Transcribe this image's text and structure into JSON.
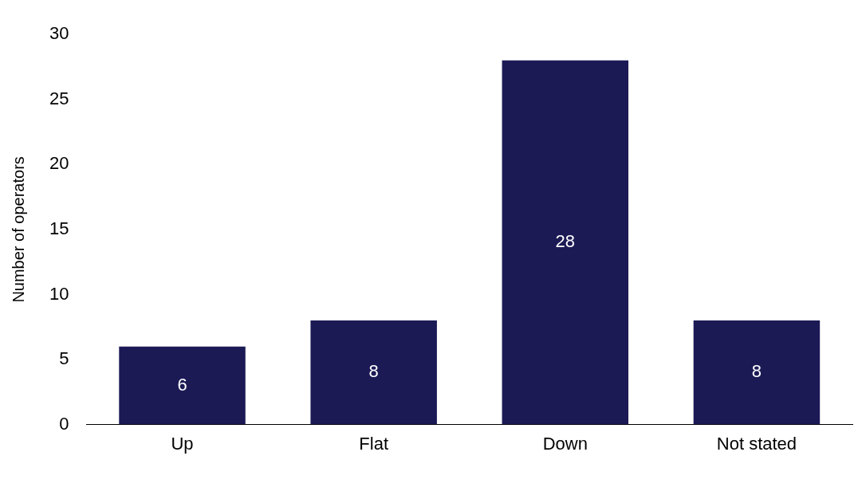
{
  "chart_data": {
    "type": "bar",
    "ylabel": "Number of operators",
    "categories": [
      "Up",
      "Flat",
      "Down",
      "Not stated"
    ],
    "values": [
      6,
      8,
      28,
      8
    ],
    "color": "#1c1a55",
    "ylim": [
      0,
      30
    ],
    "yticks": [
      0,
      5,
      10,
      15,
      20,
      25,
      30
    ],
    "grid": false,
    "legend": false,
    "data_labels": true
  }
}
